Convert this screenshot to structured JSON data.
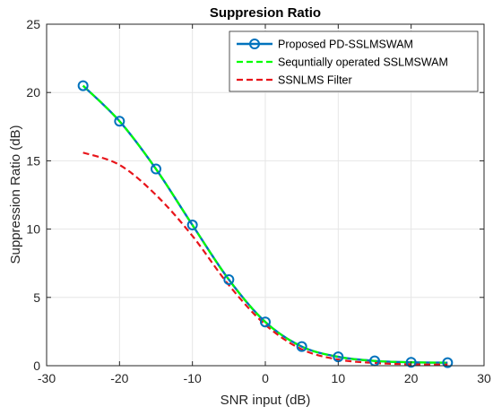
{
  "chart_data": {
    "type": "line",
    "title": "Suppresion Ratio",
    "xlabel": "SNR input (dB)",
    "ylabel": "Suppression Ratio (dB)",
    "xlim": [
      -30,
      30
    ],
    "ylim": [
      0,
      25
    ],
    "xticks": [
      -30,
      -20,
      -10,
      0,
      10,
      20,
      30
    ],
    "yticks": [
      0,
      5,
      10,
      15,
      20,
      25
    ],
    "grid": true,
    "legend_position": "top-right",
    "series": [
      {
        "name": "Proposed PD-SSLMSWAM",
        "color": "#0072BD",
        "style": "solid",
        "marker": "circle",
        "x": [
          -25,
          -20,
          -15,
          -10,
          -5,
          0,
          5,
          10,
          15,
          20,
          25
        ],
        "y": [
          20.5,
          17.9,
          14.4,
          10.3,
          6.3,
          3.2,
          1.4,
          0.65,
          0.35,
          0.25,
          0.22
        ]
      },
      {
        "name": "Sequntially operated SSLMSWAM",
        "color": "#00FF00",
        "style": "dashed",
        "marker": "none",
        "x": [
          -25,
          -20,
          -15,
          -10,
          -5,
          0,
          5,
          10,
          15,
          20,
          25
        ],
        "y": [
          20.5,
          17.9,
          14.4,
          10.3,
          6.3,
          3.2,
          1.4,
          0.65,
          0.35,
          0.25,
          0.22
        ]
      },
      {
        "name": "SSNLMS Filter",
        "color": "#E8141A",
        "style": "dashed",
        "marker": "none",
        "x": [
          -25,
          -20,
          -15,
          -10,
          -5,
          0,
          5,
          10,
          15,
          20,
          25
        ],
        "y": [
          15.6,
          14.7,
          12.5,
          9.5,
          5.9,
          3.0,
          1.2,
          0.45,
          0.2,
          0.1,
          0.08
        ]
      }
    ]
  }
}
